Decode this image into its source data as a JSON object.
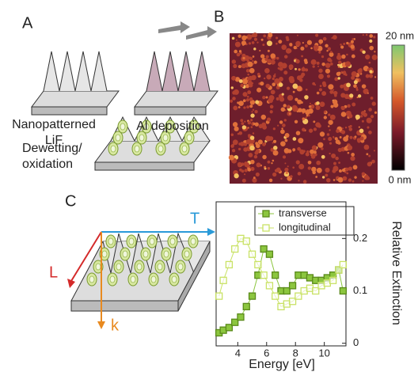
{
  "figure": {
    "panel_a": {
      "label": "A",
      "step1": "Nanopatterned",
      "step1b": "LiF",
      "step2": "Al deposition",
      "step3": "Dewetting/",
      "step3b": "oxidation"
    },
    "panel_b": {
      "label": "B",
      "scale_max": "20 nm",
      "scale_min": "0 nm"
    },
    "panel_c": {
      "label": "C",
      "axis_t": "T",
      "axis_l": "L",
      "axis_k": "k"
    }
  },
  "chart_data": {
    "type": "scatter",
    "x_label": "Energy [eV]",
    "y_label": "Relative Extinction",
    "x": [
      2.7,
      3.0,
      3.4,
      3.8,
      4.2,
      4.6,
      5.0,
      5.4,
      5.8,
      6.2,
      6.6,
      7.0,
      7.4,
      7.8,
      8.2,
      8.6,
      9.0,
      9.4,
      9.8,
      10.2,
      10.6,
      11.0,
      11.3
    ],
    "series": [
      {
        "name": "transverse",
        "color": "#8cc63f",
        "filled": true,
        "values": [
          0.02,
          0.025,
          0.03,
          0.04,
          0.05,
          0.07,
          0.09,
          0.13,
          0.18,
          0.17,
          0.13,
          0.1,
          0.1,
          0.11,
          0.13,
          0.13,
          0.125,
          0.12,
          0.12,
          0.125,
          0.13,
          0.14,
          0.1
        ]
      },
      {
        "name": "longitudinal",
        "color": "#c9e265",
        "filled": false,
        "values": [
          0.09,
          0.12,
          0.15,
          0.18,
          0.2,
          0.195,
          0.17,
          0.15,
          0.13,
          0.11,
          0.09,
          0.07,
          0.075,
          0.08,
          0.09,
          0.1,
          0.105,
          0.1,
          0.11,
          0.115,
          0.12,
          0.14,
          0.15
        ]
      }
    ],
    "xlim": [
      2.5,
      11.5
    ],
    "xticks": [
      4,
      6,
      8,
      10
    ],
    "ylim": [
      -0.005,
      0.27
    ],
    "yticks": [
      0,
      0.1,
      0.2
    ],
    "legend": "upper left"
  }
}
